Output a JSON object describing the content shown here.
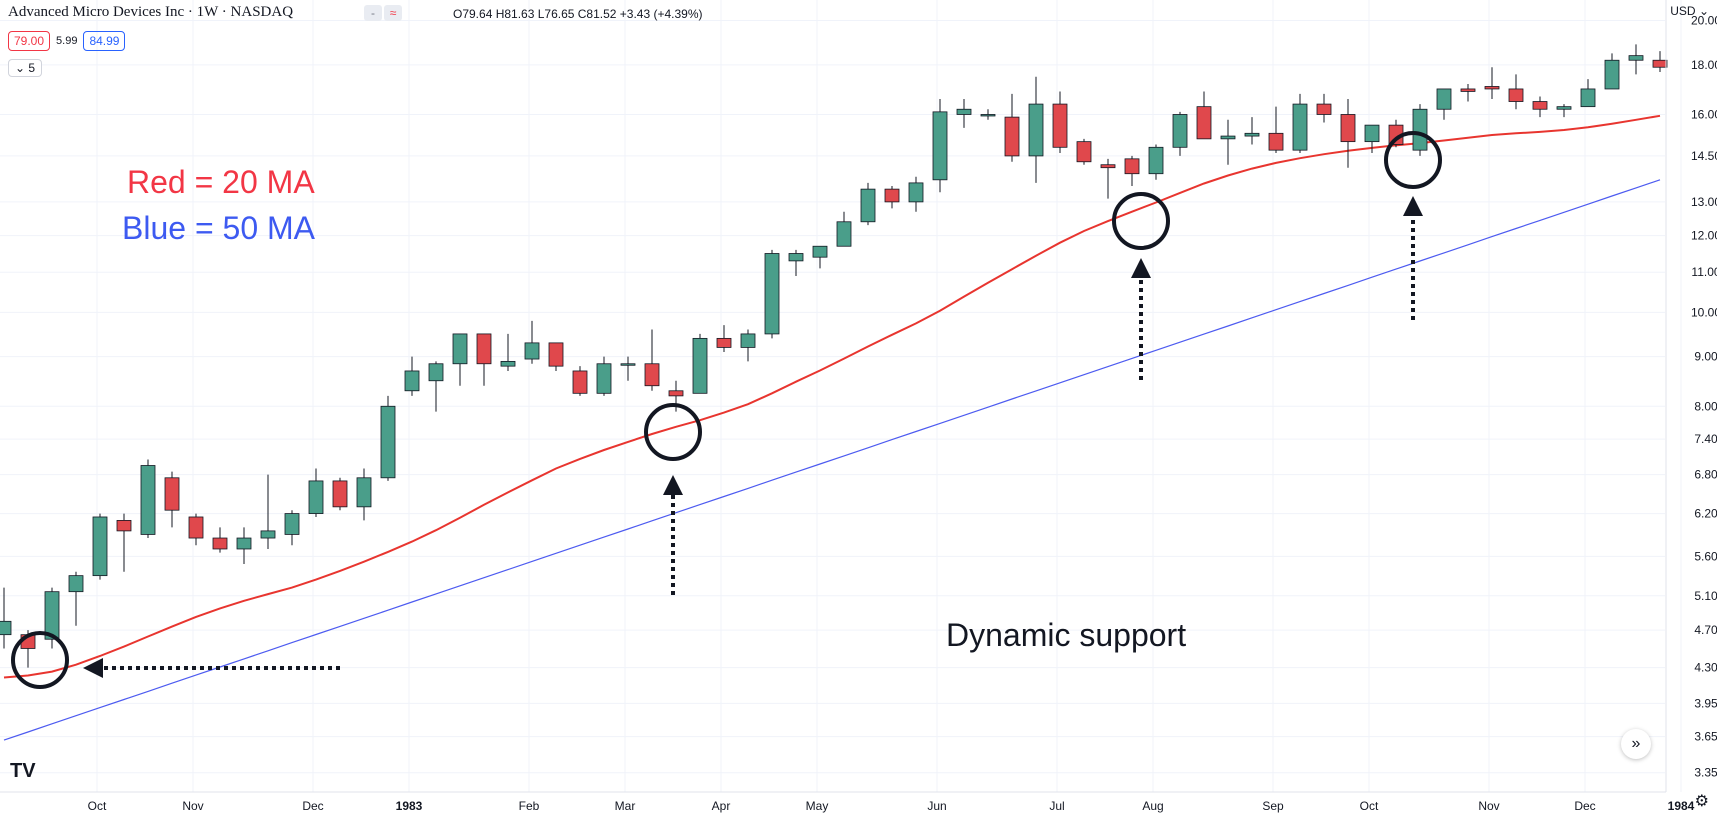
{
  "header": {
    "title": "Advanced Micro Devices Inc · 1W · NASDAQ",
    "tools": [
      "-",
      "≈"
    ],
    "ohlc": "O79.64 H81.63 L76.65 C81.52 +3.43 (+4.39%)",
    "bid": "79.00",
    "spread": "5.99",
    "ask": "84.99",
    "quantity": "5",
    "currency": "USD"
  },
  "icons": {
    "collapse": "chevron-down-icon",
    "scroll": "double-chevron-right-icon",
    "settings": "gear-icon",
    "logo": "tradingview-logo-icon"
  },
  "logo_text": "TV",
  "legend": {
    "ma20": "Red = 20 MA",
    "ma50": "Blue = 50 MA"
  },
  "annotation": "Dynamic support",
  "colors": {
    "up": "#4a9e8a",
    "down": "#e0484c",
    "ma20": "#e8352f",
    "ma50": "#4d5bf0",
    "grid": "#f0f3fa",
    "text": "#131722"
  },
  "chart_data": {
    "type": "candlestick",
    "scale": "log",
    "ylim": [
      3.2,
      21.0
    ],
    "y_ticks": [
      "20.00",
      "18.00",
      "16.00",
      "14.50",
      "13.00",
      "12.00",
      "11.00",
      "10.00",
      "9.00",
      "8.00",
      "7.40",
      "6.80",
      "6.20",
      "5.60",
      "5.10",
      "4.70",
      "4.30",
      "3.95",
      "3.65",
      "3.35"
    ],
    "x_ticks": [
      "Oct",
      "Nov",
      "Dec",
      "1983",
      "Feb",
      "Mar",
      "Apr",
      "May",
      "Jun",
      "Jul",
      "Aug",
      "Sep",
      "Oct",
      "Nov",
      "Dec",
      "1984"
    ],
    "candles": [
      {
        "o": 4.65,
        "h": 5.2,
        "l": 4.5,
        "c": 4.8
      },
      {
        "o": 4.65,
        "h": 4.7,
        "l": 4.3,
        "c": 4.5
      },
      {
        "o": 4.6,
        "h": 5.2,
        "l": 4.5,
        "c": 5.15
      },
      {
        "o": 5.15,
        "h": 5.4,
        "l": 4.75,
        "c": 5.35
      },
      {
        "o": 5.35,
        "h": 6.2,
        "l": 5.3,
        "c": 6.15
      },
      {
        "o": 6.1,
        "h": 6.2,
        "l": 5.4,
        "c": 5.95
      },
      {
        "o": 5.9,
        "h": 7.05,
        "l": 5.85,
        "c": 6.95
      },
      {
        "o": 6.75,
        "h": 6.85,
        "l": 6.0,
        "c": 6.25
      },
      {
        "o": 6.15,
        "h": 6.2,
        "l": 5.75,
        "c": 5.85
      },
      {
        "o": 5.85,
        "h": 6.0,
        "l": 5.65,
        "c": 5.7
      },
      {
        "o": 5.7,
        "h": 6.0,
        "l": 5.5,
        "c": 5.85
      },
      {
        "o": 5.85,
        "h": 6.8,
        "l": 5.7,
        "c": 5.95
      },
      {
        "o": 5.9,
        "h": 6.25,
        "l": 5.75,
        "c": 6.2
      },
      {
        "o": 6.2,
        "h": 6.9,
        "l": 6.15,
        "c": 6.7
      },
      {
        "o": 6.7,
        "h": 6.75,
        "l": 6.25,
        "c": 6.3
      },
      {
        "o": 6.3,
        "h": 6.9,
        "l": 6.1,
        "c": 6.75
      },
      {
        "o": 6.75,
        "h": 8.2,
        "l": 6.7,
        "c": 8.0
      },
      {
        "o": 8.3,
        "h": 9.0,
        "l": 8.2,
        "c": 8.7
      },
      {
        "o": 8.5,
        "h": 8.9,
        "l": 7.9,
        "c": 8.85
      },
      {
        "o": 8.85,
        "h": 9.5,
        "l": 8.4,
        "c": 9.5
      },
      {
        "o": 9.5,
        "h": 9.5,
        "l": 8.4,
        "c": 8.85
      },
      {
        "o": 8.8,
        "h": 9.5,
        "l": 8.7,
        "c": 8.9
      },
      {
        "o": 8.95,
        "h": 9.8,
        "l": 8.85,
        "c": 9.3
      },
      {
        "o": 9.3,
        "h": 9.3,
        "l": 8.7,
        "c": 8.8
      },
      {
        "o": 8.7,
        "h": 8.8,
        "l": 8.2,
        "c": 8.25
      },
      {
        "o": 8.25,
        "h": 9.0,
        "l": 8.2,
        "c": 8.85
      },
      {
        "o": 8.85,
        "h": 9.0,
        "l": 8.5,
        "c": 8.85
      },
      {
        "o": 8.85,
        "h": 9.6,
        "l": 8.3,
        "c": 8.4
      },
      {
        "o": 8.3,
        "h": 8.5,
        "l": 7.9,
        "c": 8.2
      },
      {
        "o": 8.25,
        "h": 9.5,
        "l": 8.25,
        "c": 9.4
      },
      {
        "o": 9.4,
        "h": 9.7,
        "l": 9.1,
        "c": 9.2
      },
      {
        "o": 9.2,
        "h": 9.6,
        "l": 8.9,
        "c": 9.5
      },
      {
        "o": 9.5,
        "h": 11.6,
        "l": 9.4,
        "c": 11.5
      },
      {
        "o": 11.3,
        "h": 11.6,
        "l": 10.9,
        "c": 11.5
      },
      {
        "o": 11.4,
        "h": 11.7,
        "l": 11.1,
        "c": 11.7
      },
      {
        "o": 11.7,
        "h": 12.7,
        "l": 11.7,
        "c": 12.4
      },
      {
        "o": 12.4,
        "h": 13.6,
        "l": 12.3,
        "c": 13.4
      },
      {
        "o": 13.4,
        "h": 13.5,
        "l": 12.8,
        "c": 13.0
      },
      {
        "o": 13.0,
        "h": 13.8,
        "l": 12.7,
        "c": 13.6
      },
      {
        "o": 13.7,
        "h": 16.6,
        "l": 13.3,
        "c": 16.1
      },
      {
        "o": 16.0,
        "h": 16.6,
        "l": 15.5,
        "c": 16.2
      },
      {
        "o": 16.0,
        "h": 16.2,
        "l": 15.8,
        "c": 16.0
      },
      {
        "o": 15.9,
        "h": 16.8,
        "l": 14.3,
        "c": 14.5
      },
      {
        "o": 14.5,
        "h": 17.5,
        "l": 13.6,
        "c": 16.4
      },
      {
        "o": 16.4,
        "h": 16.9,
        "l": 14.6,
        "c": 14.8
      },
      {
        "o": 15.0,
        "h": 15.1,
        "l": 14.2,
        "c": 14.3
      },
      {
        "o": 14.2,
        "h": 14.4,
        "l": 13.1,
        "c": 14.1
      },
      {
        "o": 14.4,
        "h": 14.5,
        "l": 13.5,
        "c": 13.9
      },
      {
        "o": 13.9,
        "h": 14.9,
        "l": 13.7,
        "c": 14.8
      },
      {
        "o": 14.8,
        "h": 16.1,
        "l": 14.5,
        "c": 16.0
      },
      {
        "o": 16.3,
        "h": 16.9,
        "l": 15.1,
        "c": 15.1
      },
      {
        "o": 15.1,
        "h": 15.8,
        "l": 14.2,
        "c": 15.2
      },
      {
        "o": 15.2,
        "h": 15.9,
        "l": 14.9,
        "c": 15.3
      },
      {
        "o": 15.3,
        "h": 16.3,
        "l": 14.6,
        "c": 14.7
      },
      {
        "o": 14.7,
        "h": 16.8,
        "l": 14.6,
        "c": 16.4
      },
      {
        "o": 16.4,
        "h": 16.8,
        "l": 15.7,
        "c": 16.0
      },
      {
        "o": 16.0,
        "h": 16.6,
        "l": 14.1,
        "c": 15.0
      },
      {
        "o": 15.0,
        "h": 15.6,
        "l": 14.6,
        "c": 15.6
      },
      {
        "o": 15.6,
        "h": 15.8,
        "l": 14.8,
        "c": 14.9
      },
      {
        "o": 14.7,
        "h": 16.4,
        "l": 14.5,
        "c": 16.2
      },
      {
        "o": 16.2,
        "h": 17.0,
        "l": 15.8,
        "c": 17.0
      },
      {
        "o": 17.0,
        "h": 17.2,
        "l": 16.5,
        "c": 16.9
      },
      {
        "o": 17.1,
        "h": 17.9,
        "l": 16.6,
        "c": 17.0
      },
      {
        "o": 17.0,
        "h": 17.6,
        "l": 16.2,
        "c": 16.5
      },
      {
        "o": 16.5,
        "h": 16.7,
        "l": 15.9,
        "c": 16.2
      },
      {
        "o": 16.2,
        "h": 16.4,
        "l": 15.9,
        "c": 16.3
      },
      {
        "o": 16.3,
        "h": 17.4,
        "l": 16.3,
        "c": 17.0
      },
      {
        "o": 17.0,
        "h": 18.5,
        "l": 17.0,
        "c": 18.2
      },
      {
        "o": 18.2,
        "h": 18.9,
        "l": 17.6,
        "c": 18.4
      },
      {
        "o": 18.2,
        "h": 18.6,
        "l": 17.7,
        "c": 17.9
      }
    ],
    "ma20": [
      4.2,
      4.22,
      4.26,
      4.33,
      4.42,
      4.52,
      4.63,
      4.74,
      4.85,
      4.95,
      5.04,
      5.12,
      5.2,
      5.3,
      5.41,
      5.53,
      5.66,
      5.8,
      5.96,
      6.14,
      6.33,
      6.52,
      6.71,
      6.9,
      7.06,
      7.21,
      7.35,
      7.49,
      7.62,
      7.74,
      7.88,
      8.04,
      8.25,
      8.48,
      8.71,
      8.96,
      9.22,
      9.48,
      9.74,
      10.04,
      10.38,
      10.73,
      11.08,
      11.44,
      11.8,
      12.13,
      12.42,
      12.7,
      12.98,
      13.28,
      13.58,
      13.84,
      14.07,
      14.26,
      14.42,
      14.56,
      14.68,
      14.78,
      14.87,
      14.95,
      15.04,
      15.14,
      15.24,
      15.3,
      15.35,
      15.42,
      15.52,
      15.65,
      15.8,
      15.95
    ]
  }
}
